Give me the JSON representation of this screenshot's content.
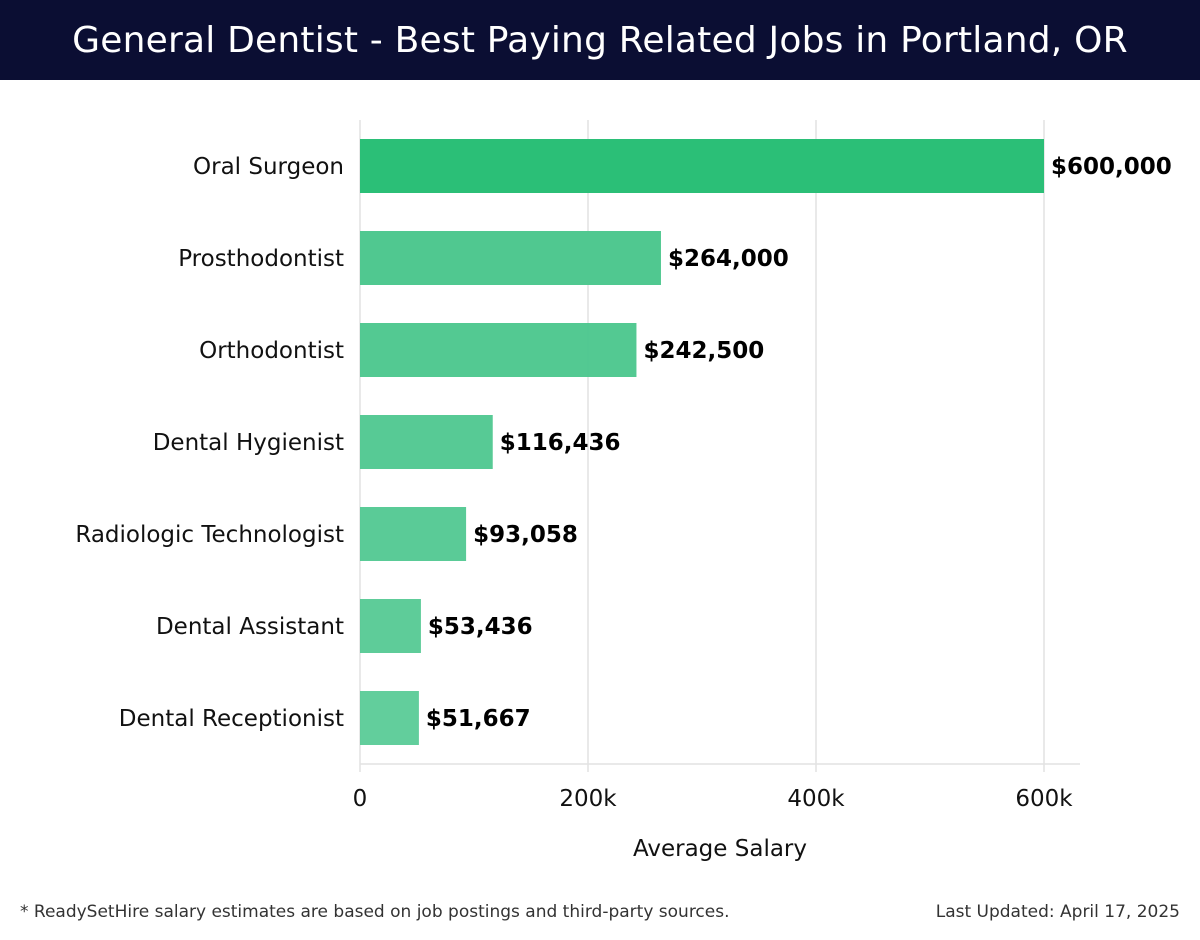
{
  "header": {
    "title": "General Dentist - Best Paying Related Jobs in Portland, OR"
  },
  "footer": {
    "note": "* ReadySetHire salary estimates are based on job postings and third-party sources.",
    "updated": "Last Updated: April 17, 2025"
  },
  "colors": {
    "header_bg": "#0b0e33",
    "bar_top": "#2bbf77",
    "bar": "#4cc78e",
    "grid": "#e2e2e2"
  },
  "chart_data": {
    "type": "bar",
    "orientation": "horizontal",
    "categories": [
      "Oral Surgeon",
      "Prosthodontist",
      "Orthodontist",
      "Dental Hygienist",
      "Radiologic Technologist",
      "Dental Assistant",
      "Dental Receptionist"
    ],
    "values": [
      600000,
      264000,
      242500,
      116436,
      93058,
      53436,
      51667
    ],
    "value_labels": [
      "$600,000",
      "$264,000",
      "$242,500",
      "$116,436",
      "$93,058",
      "$53,436",
      "$51,667"
    ],
    "xlabel": "Average Salary",
    "xlim": [
      0,
      630000
    ],
    "x_ticks": [
      0,
      200000,
      400000,
      600000
    ],
    "x_tick_labels": [
      "0",
      "200k",
      "400k",
      "600k"
    ],
    "grid": true
  }
}
